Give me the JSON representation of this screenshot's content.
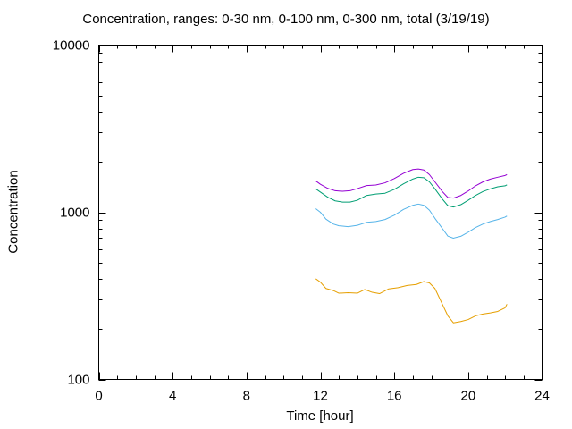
{
  "chart_data": {
    "type": "line",
    "title": "Concentration, ranges: 0-30 nm, 0-100 nm, 0-300 nm, total (3/19/19)",
    "xlabel": "Time [hour]",
    "ylabel": "Concentration",
    "xlim": [
      0,
      24
    ],
    "ylim": [
      100,
      10000
    ],
    "yscale": "log",
    "x_ticks": [
      "0",
      "4",
      "8",
      "12",
      "16",
      "20",
      "24"
    ],
    "y_ticks": [
      "100",
      "1000",
      "10000"
    ],
    "grid": false,
    "legend": "none",
    "series": [
      {
        "color": "#e69f00",
        "x": [
          11.75,
          12.0,
          12.3,
          12.7,
          13.0,
          13.5,
          14.0,
          14.4,
          14.8,
          15.2,
          15.7,
          16.2,
          16.7,
          17.2,
          17.6,
          17.9,
          18.2,
          18.6,
          18.9,
          19.2,
          19.6,
          20.0,
          20.4,
          20.8,
          21.2,
          21.6,
          22.0,
          22.1
        ],
        "y": [
          400,
          382,
          350,
          340,
          328,
          330,
          328,
          345,
          332,
          326,
          348,
          354,
          365,
          370,
          385,
          378,
          350,
          282,
          240,
          218,
          222,
          228,
          240,
          246,
          250,
          255,
          268,
          282
        ]
      },
      {
        "color": "#56b4e9",
        "x": [
          11.75,
          12.0,
          12.3,
          12.7,
          13.0,
          13.5,
          14.0,
          14.5,
          15.0,
          15.5,
          16.0,
          16.5,
          17.0,
          17.3,
          17.6,
          17.9,
          18.2,
          18.6,
          18.9,
          19.2,
          19.6,
          20.0,
          20.4,
          20.8,
          21.2,
          21.6,
          22.0,
          22.1
        ],
        "y": [
          1050,
          1000,
          910,
          850,
          830,
          820,
          835,
          870,
          880,
          905,
          960,
          1040,
          1100,
          1120,
          1100,
          1030,
          920,
          800,
          720,
          700,
          718,
          760,
          810,
          850,
          880,
          905,
          935,
          950
        ]
      },
      {
        "color": "#009e73",
        "x": [
          11.75,
          12.0,
          12.4,
          12.8,
          13.2,
          13.6,
          14.0,
          14.5,
          15.0,
          15.5,
          16.0,
          16.5,
          17.0,
          17.3,
          17.6,
          17.9,
          18.2,
          18.6,
          18.9,
          19.2,
          19.6,
          20.0,
          20.4,
          20.8,
          21.2,
          21.6,
          22.0,
          22.1
        ],
        "y": [
          1380,
          1320,
          1230,
          1170,
          1150,
          1150,
          1180,
          1260,
          1285,
          1300,
          1370,
          1480,
          1580,
          1620,
          1610,
          1520,
          1380,
          1200,
          1095,
          1075,
          1110,
          1180,
          1260,
          1330,
          1380,
          1420,
          1440,
          1460
        ]
      },
      {
        "color": "#9400d3",
        "x": [
          11.75,
          12.0,
          12.4,
          12.8,
          13.2,
          13.6,
          14.0,
          14.5,
          15.0,
          15.5,
          16.0,
          16.5,
          17.0,
          17.3,
          17.6,
          17.9,
          18.2,
          18.6,
          18.9,
          19.2,
          19.6,
          20.0,
          20.4,
          20.8,
          21.2,
          21.6,
          22.0,
          22.1
        ],
        "y": [
          1540,
          1470,
          1390,
          1345,
          1335,
          1345,
          1385,
          1445,
          1455,
          1500,
          1590,
          1710,
          1800,
          1815,
          1790,
          1680,
          1520,
          1330,
          1225,
          1215,
          1260,
          1340,
          1440,
          1520,
          1580,
          1620,
          1660,
          1680
        ]
      }
    ]
  }
}
